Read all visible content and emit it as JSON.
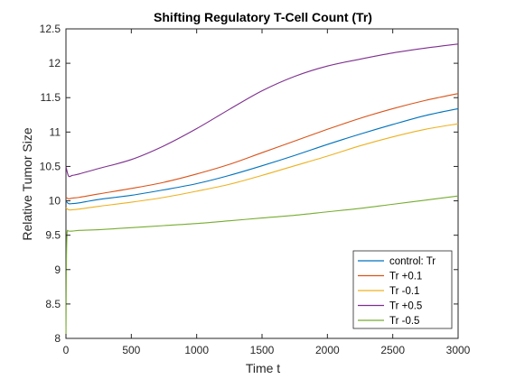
{
  "chart_data": {
    "type": "line",
    "title": "Shifting Regulatory T-Cell Count (Tr)",
    "xlabel": "Time t",
    "ylabel": "Relative Tumor Size",
    "xlim": [
      0,
      3000
    ],
    "ylim": [
      8,
      12.5
    ],
    "xticks": [
      0,
      500,
      1000,
      1500,
      2000,
      2500,
      3000
    ],
    "yticks": [
      8,
      8.5,
      9,
      9.5,
      10,
      10.5,
      11,
      11.5,
      12,
      12.5
    ],
    "xtick_labels": [
      "0",
      "500",
      "1000",
      "1500",
      "2000",
      "2500",
      "3000"
    ],
    "ytick_labels": [
      "8",
      "8.5",
      "9",
      "9.5",
      "10",
      "10.5",
      "11",
      "11.5",
      "12",
      "12.5"
    ],
    "grid": false,
    "legend_position": "bottom-right",
    "series": [
      {
        "name": "control: Tr",
        "color": "#0072BD",
        "x": [
          0,
          20,
          50,
          100,
          250,
          500,
          750,
          1000,
          1250,
          1500,
          1750,
          2000,
          2250,
          2500,
          2750,
          3000
        ],
        "y": [
          10.0,
          9.96,
          9.96,
          9.97,
          10.02,
          10.08,
          10.16,
          10.25,
          10.37,
          10.51,
          10.66,
          10.82,
          10.97,
          11.11,
          11.24,
          11.34
        ]
      },
      {
        "name": "Tr +0.1",
        "color": "#D95319",
        "x": [
          0,
          20,
          50,
          100,
          250,
          500,
          750,
          1000,
          1250,
          1500,
          1750,
          2000,
          2250,
          2500,
          2750,
          3000
        ],
        "y": [
          10.05,
          10.03,
          10.04,
          10.05,
          10.1,
          10.18,
          10.27,
          10.39,
          10.53,
          10.7,
          10.87,
          11.04,
          11.2,
          11.34,
          11.46,
          11.56
        ]
      },
      {
        "name": "Tr -0.1",
        "color": "#EDB120",
        "x": [
          0,
          20,
          50,
          100,
          250,
          500,
          750,
          1000,
          1250,
          1500,
          1750,
          2000,
          2250,
          2500,
          2750,
          3000
        ],
        "y": [
          9.9,
          9.87,
          9.87,
          9.88,
          9.92,
          9.98,
          10.05,
          10.14,
          10.24,
          10.37,
          10.51,
          10.65,
          10.8,
          10.93,
          11.04,
          11.12
        ]
      },
      {
        "name": "Tr +0.5",
        "color": "#7E2F8E",
        "x": [
          0,
          20,
          50,
          100,
          250,
          500,
          750,
          1000,
          1250,
          1500,
          1750,
          2000,
          2250,
          2500,
          2750,
          3000
        ],
        "y": [
          10.5,
          10.36,
          10.37,
          10.39,
          10.47,
          10.6,
          10.8,
          11.05,
          11.33,
          11.6,
          11.81,
          11.96,
          12.06,
          12.15,
          12.22,
          12.28
        ]
      },
      {
        "name": "Tr -0.5",
        "color": "#77AC30",
        "x": [
          0,
          3,
          6,
          10,
          20,
          50,
          100,
          250,
          500,
          750,
          1000,
          1250,
          1500,
          1750,
          2000,
          2250,
          2500,
          2750,
          3000
        ],
        "y": [
          8.0,
          9.0,
          9.4,
          9.56,
          9.56,
          9.56,
          9.57,
          9.58,
          9.61,
          9.64,
          9.67,
          9.71,
          9.75,
          9.79,
          9.84,
          9.89,
          9.95,
          10.01,
          10.07
        ]
      }
    ]
  }
}
